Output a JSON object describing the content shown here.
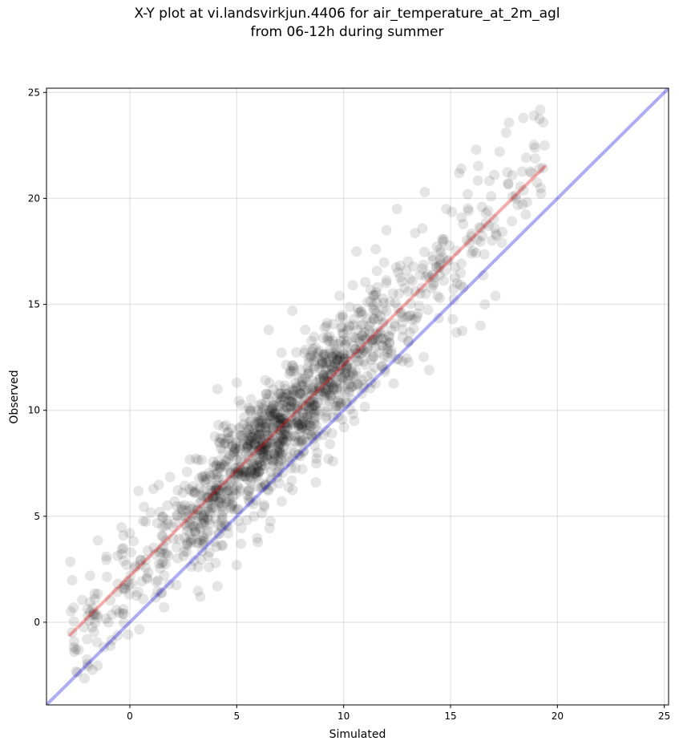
{
  "chart_data": {
    "type": "scatter",
    "title_line1": "X-Y plot at vi.landsvirkjun.4406 for air_temperature_at_2m_agl",
    "title_line2": "from 06-12h during summer",
    "xlabel": "Simulated",
    "ylabel": "Observed",
    "xlim": [
      -3.9,
      25.2
    ],
    "ylim": [
      -3.9,
      25.2
    ],
    "xticks": [
      0,
      5,
      10,
      15,
      20,
      25
    ],
    "yticks": [
      0,
      5,
      10,
      15,
      20,
      25
    ],
    "grid": true,
    "point_color": "#000000",
    "point_alpha": 0.1,
    "one_to_one_line": {
      "color": "#0000ee",
      "alpha": 0.33,
      "x": [
        -3.9,
        25.2
      ],
      "y": [
        -3.9,
        25.2
      ]
    },
    "fit_line": {
      "color": "#ee0000",
      "alpha": 0.33,
      "x": [
        -2.8,
        19.4
      ],
      "y": [
        -0.6,
        21.5
      ]
    },
    "scatter_cloud": {
      "n": 1400,
      "x_range": [
        -2.8,
        19.4
      ],
      "relation": "observed ≈ 1.0 × simulated + 2.1",
      "scatter_sd": 1.3,
      "densest_region": [
        [
          5,
          9
        ],
        [
          7,
          11
        ]
      ]
    },
    "outlier_points": [
      {
        "x": 18.4,
        "y": 23.8
      },
      {
        "x": 18.9,
        "y": 23.9
      },
      {
        "x": 17.6,
        "y": 23.1
      },
      {
        "x": 16.2,
        "y": 22.3
      },
      {
        "x": 17.3,
        "y": 22.2
      },
      {
        "x": 19.4,
        "y": 22.5
      },
      {
        "x": 15.4,
        "y": 21.2
      },
      {
        "x": 15.5,
        "y": 21.4
      },
      {
        "x": 18.8,
        "y": 21.2
      },
      {
        "x": 17.7,
        "y": 20.7
      },
      {
        "x": 16.9,
        "y": 20.1
      },
      {
        "x": 13.8,
        "y": 20.3
      },
      {
        "x": 12.5,
        "y": 19.5
      },
      {
        "x": 15.8,
        "y": 20.2
      },
      {
        "x": 14.8,
        "y": 19.5
      },
      {
        "x": 14.0,
        "y": 11.9
      },
      {
        "x": 16.4,
        "y": 14.0
      },
      {
        "x": 15.1,
        "y": 14.3
      },
      {
        "x": 17.1,
        "y": 15.4
      },
      {
        "x": 16.6,
        "y": 15.0
      },
      {
        "x": 3.3,
        "y": 1.2
      },
      {
        "x": 4.1,
        "y": 1.7
      },
      {
        "x": 1.6,
        "y": 0.7
      },
      {
        "x": 3.7,
        "y": 2.6
      },
      {
        "x": -1.1,
        "y": 3.1
      },
      {
        "x": 0.0,
        "y": 4.2
      },
      {
        "x": -0.3,
        "y": 4.1
      },
      {
        "x": -2.6,
        "y": -1.4
      },
      {
        "x": -2.4,
        "y": -1.3
      },
      {
        "x": -2.0,
        "y": -0.8
      },
      {
        "x": 1.1,
        "y": 6.3
      },
      {
        "x": 0.4,
        "y": 6.2
      },
      {
        "x": 4.1,
        "y": 11.0
      },
      {
        "x": 5.0,
        "y": 11.3
      },
      {
        "x": 6.5,
        "y": 13.8
      },
      {
        "x": 8.2,
        "y": 13.8
      },
      {
        "x": 7.6,
        "y": 14.7
      },
      {
        "x": 10.6,
        "y": 17.5
      },
      {
        "x": 11.5,
        "y": 17.6
      },
      {
        "x": 12.0,
        "y": 18.5
      },
      {
        "x": 14.5,
        "y": 17.6
      },
      {
        "x": 15.3,
        "y": 16.0
      },
      {
        "x": 14.5,
        "y": 15.3
      },
      {
        "x": 15.6,
        "y": 15.8
      },
      {
        "x": 12.5,
        "y": 12.4
      },
      {
        "x": 9.8,
        "y": 10.2
      },
      {
        "x": 11.3,
        "y": 11.3
      },
      {
        "x": 5.0,
        "y": 2.7
      },
      {
        "x": 5.2,
        "y": 3.7
      },
      {
        "x": 4.6,
        "y": 4.2
      },
      {
        "x": 7.1,
        "y": 5.7
      },
      {
        "x": 8.7,
        "y": 6.6
      },
      {
        "x": 9.5,
        "y": 7.6
      },
      {
        "x": 10.5,
        "y": 9.5
      }
    ]
  }
}
